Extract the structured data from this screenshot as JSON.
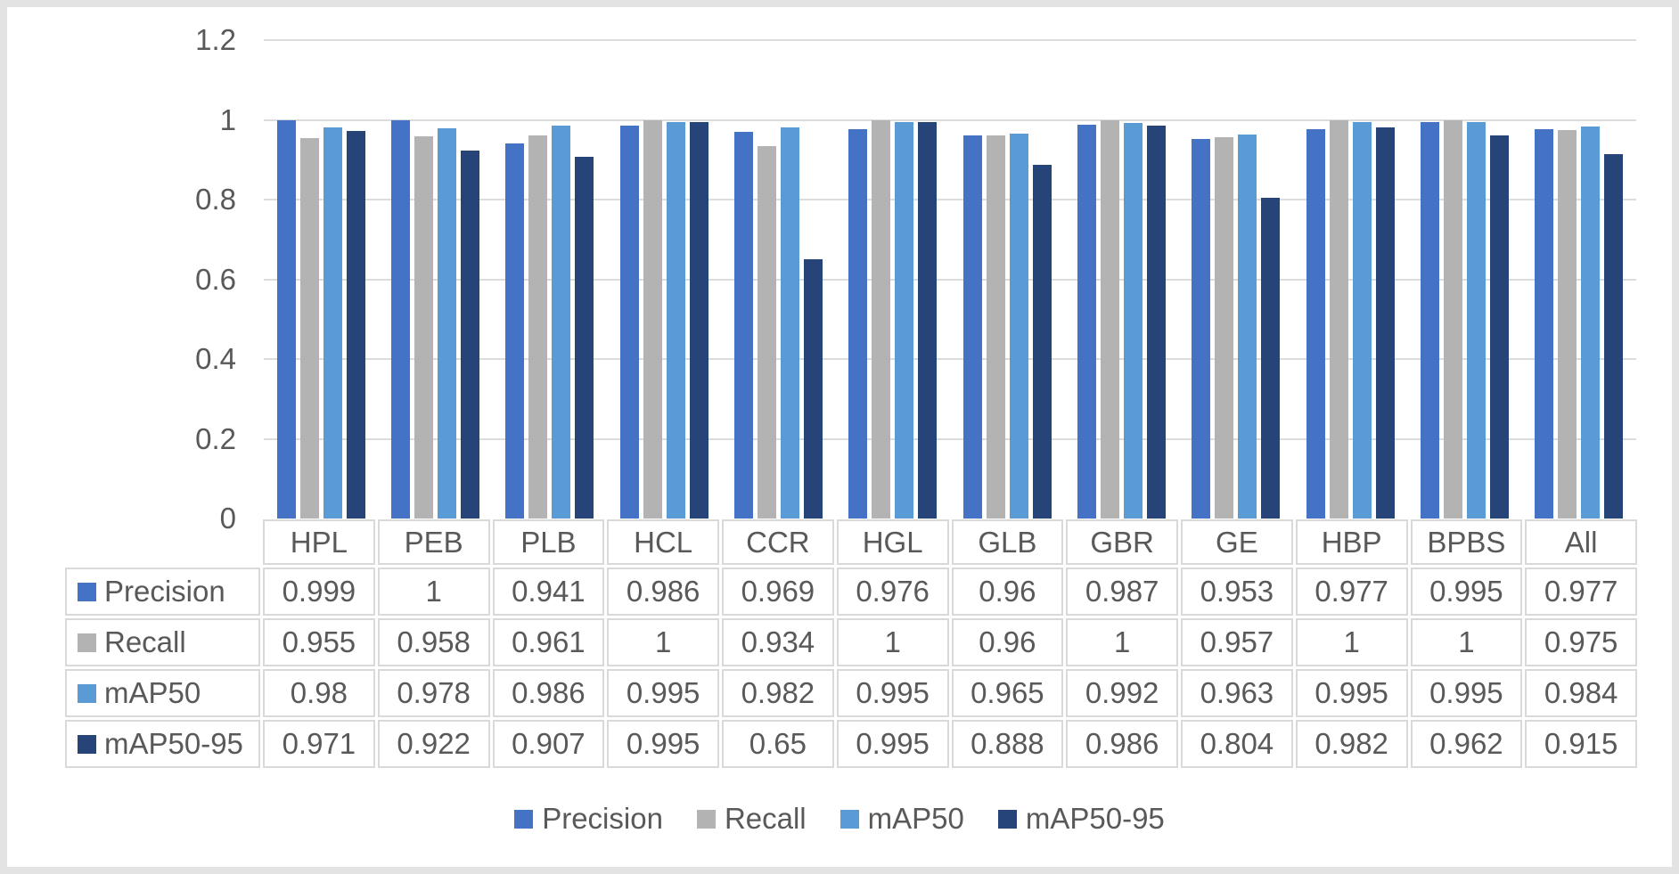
{
  "chart_data": {
    "type": "bar",
    "title": "",
    "xlabel": "",
    "ylabel": "",
    "categories": [
      "HPL",
      "PEB",
      "PLB",
      "HCL",
      "CCR",
      "HGL",
      "GLB",
      "GBR",
      "GE",
      "HBP",
      "BPBS",
      "All"
    ],
    "series": [
      {
        "name": "Precision",
        "color": "#4472C4",
        "values": [
          0.999,
          1,
          0.941,
          0.986,
          0.969,
          0.976,
          0.96,
          0.987,
          0.953,
          0.977,
          0.995,
          0.977
        ]
      },
      {
        "name": "Recall",
        "color": "#B3B3B3",
        "values": [
          0.955,
          0.958,
          0.961,
          1,
          0.934,
          1,
          0.96,
          1,
          0.957,
          1,
          1,
          0.975
        ]
      },
      {
        "name": "mAP50",
        "color": "#5B9BD5",
        "values": [
          0.98,
          0.978,
          0.986,
          0.995,
          0.982,
          0.995,
          0.965,
          0.992,
          0.963,
          0.995,
          0.995,
          0.984
        ]
      },
      {
        "name": "mAP50-95",
        "color": "#264478",
        "values": [
          0.971,
          0.922,
          0.907,
          0.995,
          0.65,
          0.995,
          0.888,
          0.986,
          0.804,
          0.982,
          0.962,
          0.915
        ]
      }
    ],
    "ylim": [
      0,
      1.2
    ],
    "yticks": [
      1.2,
      1,
      0.8,
      0.6,
      0.4,
      0.2,
      0
    ],
    "grid": true,
    "legend_position": "bottom",
    "data_table_shown": true
  },
  "colors": {
    "text": "#595959",
    "gridline": "#DCDCDC",
    "table_border": "#D9D9D9",
    "frame": "#E3E3E3",
    "background": "#FFFFFF"
  }
}
